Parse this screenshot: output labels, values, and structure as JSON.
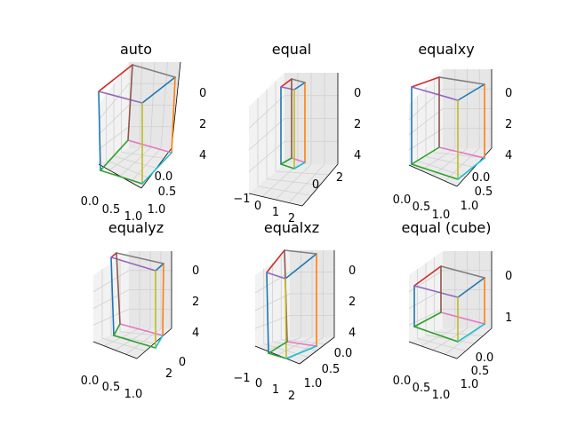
{
  "chart_data": [
    {
      "type": "line",
      "title": "auto",
      "series": [
        {
          "color": "#1f77b4",
          "x": [
            0,
            0
          ],
          "y": [
            0,
            0
          ],
          "z": [
            0,
            5
          ]
        },
        {
          "color": "#ff7f0e",
          "x": [
            0,
            1
          ],
          "y": [
            0,
            0
          ],
          "z": [
            0,
            0
          ]
        },
        {
          "color": "#2ca02c",
          "x": [
            0,
            0
          ],
          "y": [
            0,
            1
          ],
          "z": [
            0,
            0
          ]
        },
        {
          "color": "#d62728",
          "x": [
            0,
            1
          ],
          "y": [
            1,
            1
          ],
          "z": [
            5,
            5
          ]
        },
        {
          "color": "#9467bd",
          "x": [
            0,
            0
          ],
          "y": [
            0,
            1
          ],
          "z": [
            5,
            5
          ]
        },
        {
          "color": "#8c564b",
          "x": [
            0,
            0
          ],
          "y": [
            1,
            1
          ],
          "z": [
            0,
            5
          ]
        },
        {
          "color": "#e377c2",
          "x": [
            1,
            1
          ],
          "y": [
            0,
            1
          ],
          "z": [
            0,
            0
          ]
        },
        {
          "color": "#7f7f7f",
          "x": [
            1,
            1
          ],
          "y": [
            0,
            1
          ],
          "z": [
            5,
            5
          ]
        },
        {
          "color": "#bcbd22",
          "x": [
            1,
            1
          ],
          "y": [
            1,
            1
          ],
          "z": [
            0,
            5
          ]
        },
        {
          "color": "#17becf",
          "x": [
            0,
            1
          ],
          "y": [
            1,
            1
          ],
          "z": [
            0,
            0
          ]
        }
      ]
    },
    {
      "title": "equal"
    },
    {
      "title": "equalxy"
    },
    {
      "title": "equalyz"
    },
    {
      "title": "equalxz"
    },
    {
      "title": "equal (cube)"
    }
  ],
  "panels": [
    {
      "title": "auto",
      "xticks": [
        "0.0",
        "0.5",
        "1.0"
      ],
      "yticks": [
        "0.0",
        "0.5",
        "1.0"
      ],
      "zticks": [
        "0",
        "2",
        "4"
      ]
    },
    {
      "title": "equal",
      "xticks": [
        "−1",
        "0",
        "1",
        "2"
      ],
      "yticks": [
        "0",
        "2"
      ],
      "zticks": [
        "0",
        "2",
        "4"
      ]
    },
    {
      "title": "equalxy",
      "xticks": [
        "0.0",
        "0.5",
        "1.0"
      ],
      "yticks": [
        "0.0",
        "0.5",
        "1.0"
      ],
      "zticks": [
        "0",
        "2",
        "4"
      ]
    },
    {
      "title": "equalyz",
      "xticks": [
        "0.0",
        "0.5",
        "1.0"
      ],
      "yticks": [
        "0",
        "2"
      ],
      "zticks": [
        "0",
        "2",
        "4"
      ]
    },
    {
      "title": "equalxz",
      "xticks": [
        "−1",
        "0",
        "1",
        "2"
      ],
      "yticks": [
        "0.0",
        "0.5",
        "1.0"
      ],
      "zticks": [
        "0",
        "2",
        "4"
      ]
    },
    {
      "title": "equal (cube)",
      "xticks": [
        "0.0",
        "0.5",
        "1.0"
      ],
      "yticks": [
        "0.0",
        "0.5",
        "1.0"
      ],
      "zticks": [
        "0",
        "1"
      ]
    }
  ],
  "colors": {
    "pane": "#f2f2f2",
    "pane_side": "#e6e6e6",
    "pane_floor": "#ebebeb",
    "grid": "#d0d0d0",
    "edges": [
      "#1f77b4",
      "#ff7f0e",
      "#2ca02c",
      "#d62728",
      "#9467bd",
      "#8c564b",
      "#e377c2",
      "#7f7f7f",
      "#bcbd22",
      "#17becf"
    ]
  }
}
